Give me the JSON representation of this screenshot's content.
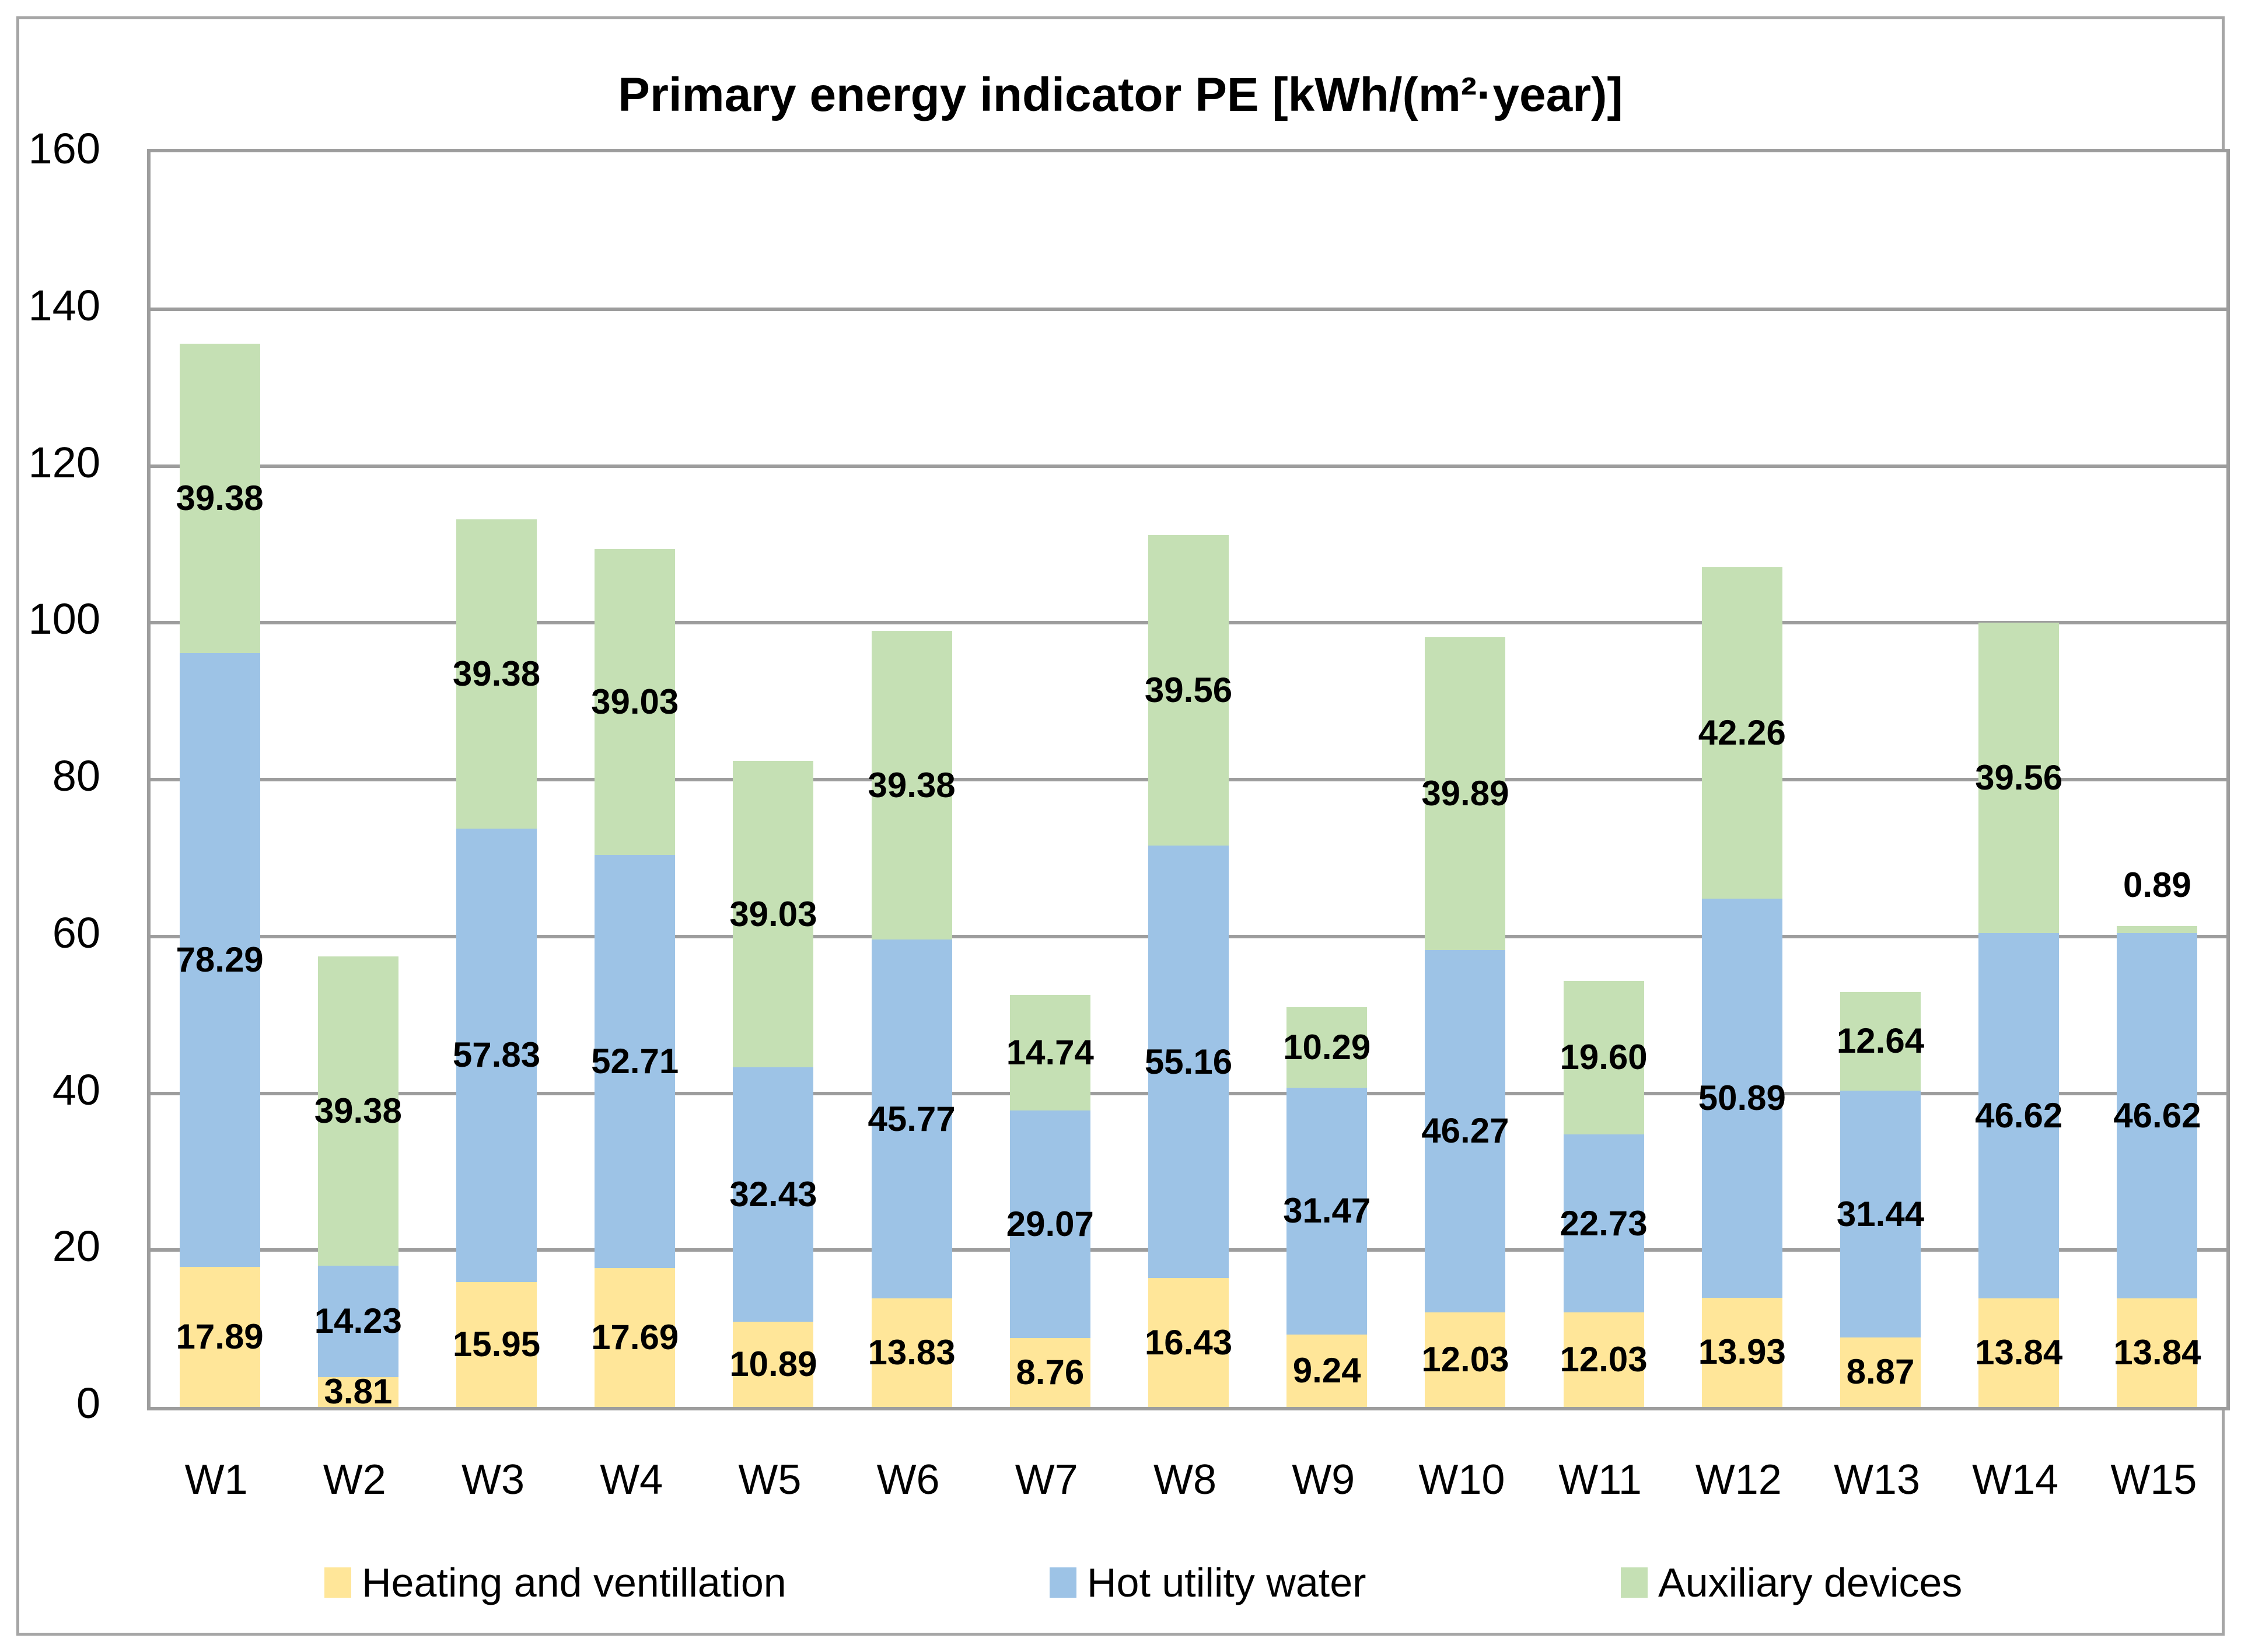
{
  "title": "Primary energy indicator PE [kWh/(m²·year)]",
  "chart_data": {
    "type": "bar",
    "stacked": true,
    "title": "Primary energy indicator PE [kWh/(m²·year)]",
    "categories": [
      "W1",
      "W2",
      "W3",
      "W4",
      "W5",
      "W6",
      "W7",
      "W8",
      "W9",
      "W10",
      "W11",
      "W12",
      "W13",
      "W14",
      "W15"
    ],
    "series": [
      {
        "name": "Heating and ventillation",
        "color": "#FFE699",
        "values": [
          17.89,
          3.81,
          15.95,
          17.69,
          10.89,
          13.83,
          8.76,
          16.43,
          9.24,
          12.03,
          12.03,
          13.93,
          8.87,
          13.84,
          13.84
        ]
      },
      {
        "name": "Hot utility water",
        "color": "#9DC3E6",
        "values": [
          78.29,
          14.23,
          57.83,
          52.71,
          32.43,
          45.77,
          29.07,
          55.16,
          31.47,
          46.27,
          22.73,
          50.89,
          31.44,
          46.62,
          46.62
        ]
      },
      {
        "name": "Auxiliary devices",
        "color": "#C5E0B4",
        "values": [
          39.38,
          39.38,
          39.38,
          39.03,
          39.03,
          39.38,
          14.74,
          39.56,
          10.29,
          39.89,
          19.6,
          42.26,
          12.64,
          39.56,
          0.89
        ]
      }
    ],
    "ylim": [
      0,
      160
    ],
    "y_ticks": [
      0,
      20,
      40,
      60,
      80,
      100,
      120,
      140,
      160
    ],
    "grid": true,
    "legend_position": "bottom",
    "value_label_decimals": 2
  },
  "colors": {
    "grid": "#9D9D9D",
    "frame_border": "#A6A6A6",
    "text": "#000000",
    "background": "#FFFFFF"
  }
}
